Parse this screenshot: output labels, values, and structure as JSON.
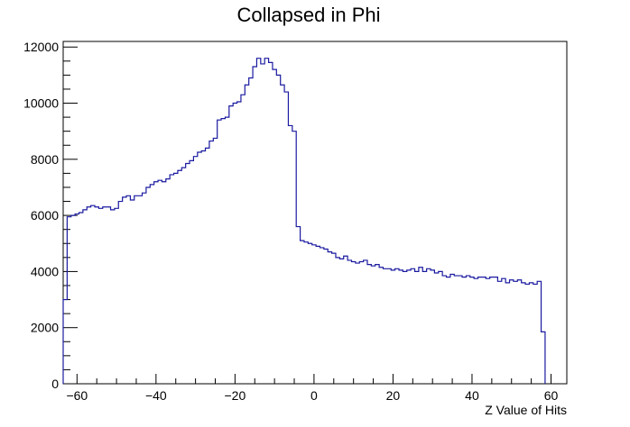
{
  "chart_data": {
    "type": "histogram",
    "title": "Collapsed in Phi",
    "xlabel": "Z Value of Hits",
    "ylabel": "",
    "xlim": [
      -63.5,
      64
    ],
    "ylim": [
      0,
      12200
    ],
    "grid": false,
    "legend": "none",
    "line_color": "#1a1aa0",
    "x_ticks": [
      -60,
      -40,
      -20,
      0,
      20,
      40,
      60
    ],
    "x_tick_labels": [
      "−60",
      "−40",
      "−20",
      "0",
      "20",
      "40",
      "60"
    ],
    "y_ticks": [
      0,
      2000,
      4000,
      6000,
      8000,
      10000,
      12000
    ],
    "y_tick_labels": [
      "0",
      "2000",
      "4000",
      "6000",
      "8000",
      "10000",
      "12000"
    ],
    "bin_width": 1,
    "bin_start": -63.5,
    "values": [
      3000,
      5950,
      6000,
      6050,
      6100,
      6200,
      6300,
      6350,
      6300,
      6250,
      6300,
      6300,
      6200,
      6250,
      6500,
      6650,
      6700,
      6550,
      6700,
      6700,
      6800,
      7000,
      7100,
      7200,
      7250,
      7200,
      7300,
      7450,
      7500,
      7600,
      7700,
      7850,
      7950,
      8100,
      8250,
      8300,
      8400,
      8650,
      8750,
      9400,
      9450,
      9500,
      9900,
      10000,
      10050,
      10300,
      10650,
      10900,
      11300,
      11600,
      11400,
      11600,
      11450,
      11200,
      11000,
      10650,
      10400,
      9200,
      9000,
      5600,
      5100,
      5050,
      5000,
      4950,
      4900,
      4850,
      4800,
      4700,
      4650,
      4500,
      4450,
      4550,
      4400,
      4350,
      4300,
      4350,
      4400,
      4250,
      4200,
      4250,
      4150,
      4100,
      4100,
      4050,
      4100,
      4050,
      4000,
      4050,
      4100,
      4000,
      4150,
      4000,
      4100,
      4050,
      3950,
      4000,
      3850,
      3800,
      3900,
      3850,
      3850,
      3800,
      3850,
      3800,
      3750,
      3800,
      3800,
      3750,
      3800,
      3800,
      3650,
      3750,
      3600,
      3700,
      3650,
      3700,
      3600,
      3550,
      3600,
      3550,
      3650,
      1850
    ]
  }
}
